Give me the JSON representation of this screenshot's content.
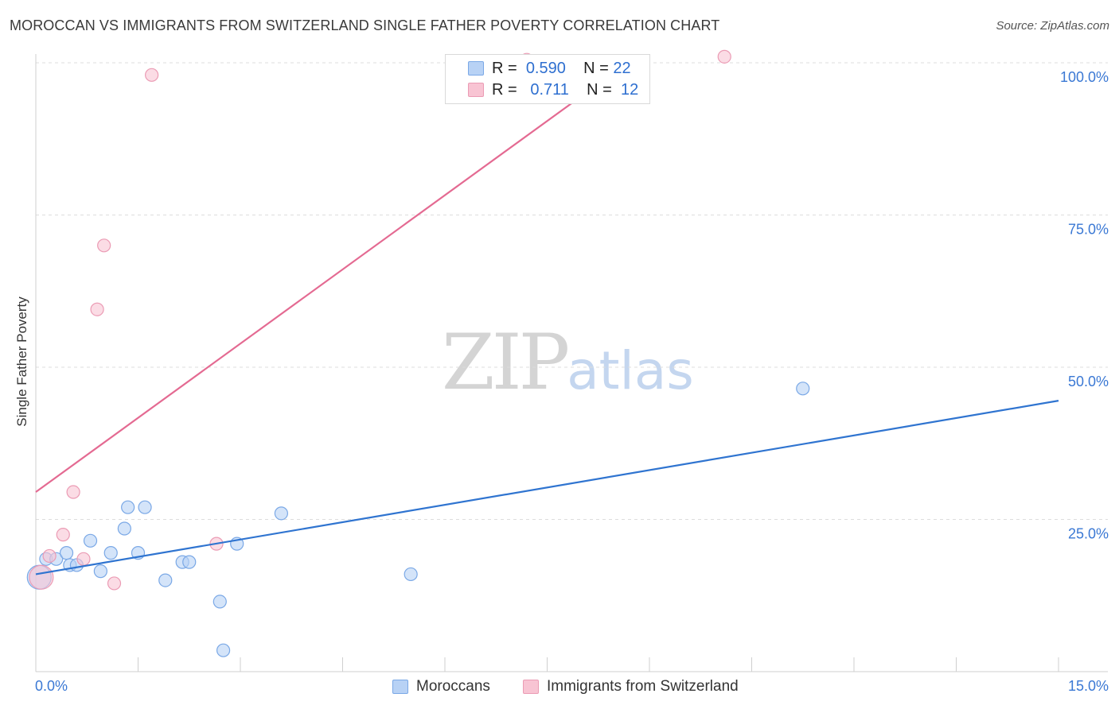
{
  "title": "MOROCCAN VS IMMIGRANTS FROM SWITZERLAND SINGLE FATHER POVERTY CORRELATION CHART",
  "source": "Source: ZipAtlas.com",
  "watermark": {
    "zip": "ZIP",
    "atlas": "atlas"
  },
  "legend": {
    "rows": [
      {
        "r_label": "R =",
        "r_value": "0.590",
        "n_label": "N =",
        "n_value": "22"
      },
      {
        "r_label": "R =",
        "r_value": "0.711",
        "n_label": "N =",
        "n_value": "12"
      }
    ],
    "bottom": [
      "Moroccans",
      "Immigrants from Switzerland"
    ]
  },
  "colors": {
    "blue_fill": "#b8d2f5",
    "blue_stroke": "#7aa8e6",
    "blue_line": "#2f74d0",
    "pink_fill": "#f8c4d3",
    "pink_stroke": "#eb9bb4",
    "pink_line": "#e46a92",
    "axis_text": "#3a78d4",
    "grid": "#dddddd"
  },
  "chart_data": {
    "type": "scatter",
    "title": "MOROCCAN VS IMMIGRANTS FROM SWITZERLAND SINGLE FATHER POVERTY CORRELATION CHART",
    "xlabel": "",
    "ylabel": "Single Father Poverty",
    "xlim": [
      0,
      15
    ],
    "ylim": [
      0,
      100
    ],
    "x_tick_labels": [
      "0.0%",
      "15.0%"
    ],
    "y_tick_labels": [
      "25.0%",
      "50.0%",
      "75.0%",
      "100.0%"
    ],
    "y_ticks": [
      25,
      50,
      75,
      100
    ],
    "grid": true,
    "series": [
      {
        "name": "Moroccans",
        "R": 0.59,
        "N": 22,
        "points": [
          {
            "x": 0.05,
            "y": 15.5,
            "large": true
          },
          {
            "x": 0.15,
            "y": 18.5
          },
          {
            "x": 0.3,
            "y": 18.5
          },
          {
            "x": 0.45,
            "y": 19.5
          },
          {
            "x": 0.5,
            "y": 17.5
          },
          {
            "x": 0.6,
            "y": 17.5
          },
          {
            "x": 0.8,
            "y": 21.5
          },
          {
            "x": 0.95,
            "y": 16.5
          },
          {
            "x": 1.1,
            "y": 19.5
          },
          {
            "x": 1.3,
            "y": 23.5
          },
          {
            "x": 1.35,
            "y": 27.0
          },
          {
            "x": 1.5,
            "y": 19.5
          },
          {
            "x": 1.6,
            "y": 27.0
          },
          {
            "x": 1.9,
            "y": 15.0
          },
          {
            "x": 2.15,
            "y": 18.0
          },
          {
            "x": 2.25,
            "y": 18.0
          },
          {
            "x": 2.7,
            "y": 11.5
          },
          {
            "x": 2.75,
            "y": 3.5
          },
          {
            "x": 2.95,
            "y": 21.0
          },
          {
            "x": 3.6,
            "y": 26.0
          },
          {
            "x": 5.5,
            "y": 16.0
          },
          {
            "x": 11.25,
            "y": 46.5
          }
        ],
        "trend": {
          "x1": 0,
          "y1": 16.0,
          "x2": 15,
          "y2": 44.5
        }
      },
      {
        "name": "Immigrants from Switzerland",
        "R": 0.711,
        "N": 12,
        "points": [
          {
            "x": 0.08,
            "y": 15.5,
            "large": true
          },
          {
            "x": 0.2,
            "y": 19.0
          },
          {
            "x": 0.4,
            "y": 22.5
          },
          {
            "x": 0.55,
            "y": 29.5
          },
          {
            "x": 0.7,
            "y": 18.5
          },
          {
            "x": 0.9,
            "y": 59.5
          },
          {
            "x": 1.0,
            "y": 70.0
          },
          {
            "x": 1.15,
            "y": 14.5
          },
          {
            "x": 1.7,
            "y": 98.0
          },
          {
            "x": 2.65,
            "y": 21.0
          },
          {
            "x": 7.2,
            "y": 100.5
          },
          {
            "x": 10.1,
            "y": 101.0
          }
        ],
        "trend": {
          "x1": 0,
          "y1": 29.5,
          "x2": 8.8,
          "y2": 101.0
        }
      }
    ]
  }
}
